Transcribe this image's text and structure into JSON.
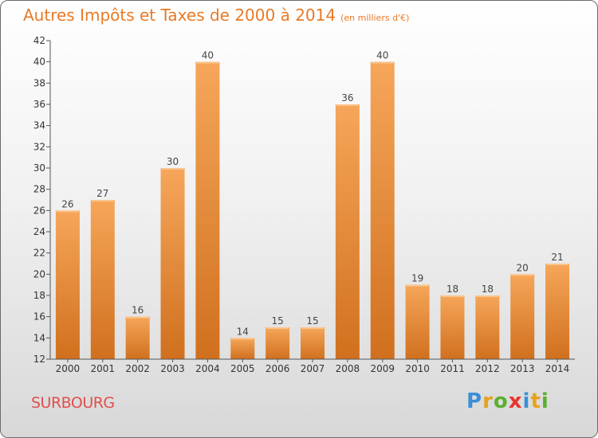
{
  "title": "Autres Impôts et Taxes de 2000 à 2014",
  "subtitle": "(en milliers d'€)",
  "commune": "SURBOURG",
  "logo": {
    "letters": [
      "P",
      "r",
      "o",
      "x",
      "i",
      "t",
      "i"
    ],
    "colors": [
      "#3a8fd6",
      "#e8a21a",
      "#5ab02e",
      "#e8352a",
      "#3a8fd6",
      "#e8a21a",
      "#5ab02e"
    ]
  },
  "colors": {
    "title": "#e87a26",
    "bar_light": "#f6a65a",
    "bar_dark": "#d0701e",
    "commune": "#e0504e"
  },
  "chart_data": {
    "type": "bar",
    "categories": [
      "2000",
      "2001",
      "2002",
      "2003",
      "2004",
      "2005",
      "2006",
      "2007",
      "2008",
      "2009",
      "2010",
      "2011",
      "2012",
      "2013",
      "2014"
    ],
    "values": [
      26,
      27,
      16,
      30,
      40,
      14,
      15,
      15,
      36,
      40,
      19,
      18,
      18,
      20,
      21
    ],
    "ylim": [
      12,
      42
    ],
    "yticks": [
      12,
      14,
      16,
      18,
      20,
      22,
      24,
      26,
      28,
      30,
      32,
      34,
      36,
      38,
      40,
      42
    ],
    "grid": false
  }
}
